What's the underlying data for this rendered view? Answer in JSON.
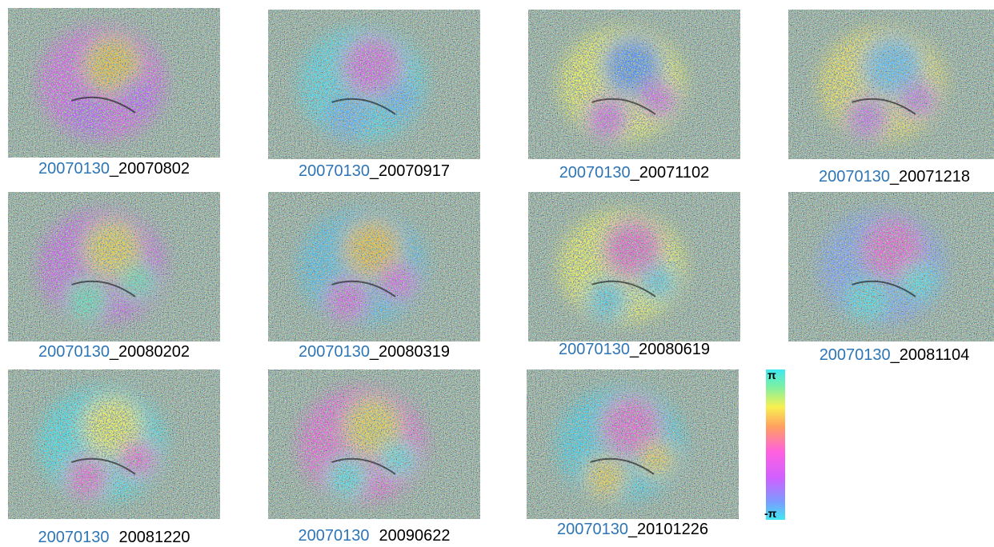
{
  "panels": [
    {
      "master": "20070130",
      "slave": "_20070802"
    },
    {
      "master": "20070130",
      "slave": "_20070917"
    },
    {
      "master": "20070130",
      "slave": "_20071102"
    },
    {
      "master": "20070130",
      "slave": "_20071218"
    },
    {
      "master": "20070130",
      "slave": "_20080202"
    },
    {
      "master": "20070130",
      "slave": "_20080319"
    },
    {
      "master": "20070130",
      "slave": "_20080619"
    },
    {
      "master": "20070130",
      "slave": "_20081104"
    },
    {
      "master": "20070130",
      "slave": "20081220"
    },
    {
      "master": "20070130",
      "slave": "20090622"
    },
    {
      "master": "20070130",
      "slave": "_20101226"
    }
  ],
  "colorbar": {
    "top": "π",
    "bottom": "-π"
  }
}
